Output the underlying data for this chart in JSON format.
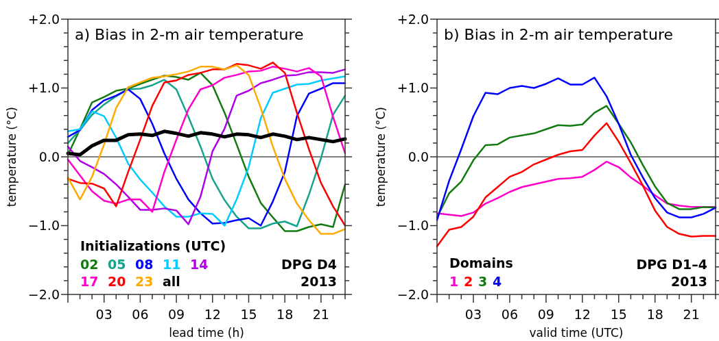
{
  "chart_data": [
    {
      "type": "line",
      "title": "a)  Bias in 2-m air temperature",
      "xlabel": "lead time (h)",
      "ylabel": "temperature (°C)",
      "legend_title": "Initializations (UTC)",
      "legend": "bottom left",
      "grid": false,
      "marker": "none",
      "line_style": "solid",
      "annotations": [
        "DPG D4",
        "2013"
      ],
      "x": [
        0,
        1,
        2,
        3,
        4,
        5,
        6,
        7,
        8,
        9,
        10,
        11,
        12,
        13,
        14,
        15,
        16,
        17,
        18,
        19,
        20,
        21,
        22,
        23
      ],
      "xlim": [
        0,
        23
      ],
      "xticks": [
        {
          "value": 0,
          "label": null
        },
        {
          "value": 1,
          "label": null
        },
        {
          "value": 2,
          "label": null
        },
        {
          "value": 3,
          "label": "03"
        },
        {
          "value": 4,
          "label": null
        },
        {
          "value": 5,
          "label": null
        },
        {
          "value": 6,
          "label": "06"
        },
        {
          "value": 7,
          "label": null
        },
        {
          "value": 8,
          "label": null
        },
        {
          "value": 9,
          "label": "09"
        },
        {
          "value": 10,
          "label": null
        },
        {
          "value": 11,
          "label": null
        },
        {
          "value": 12,
          "label": "12"
        },
        {
          "value": 13,
          "label": null
        },
        {
          "value": 14,
          "label": null
        },
        {
          "value": 15,
          "label": "15"
        },
        {
          "value": 16,
          "label": null
        },
        {
          "value": 17,
          "label": null
        },
        {
          "value": 18,
          "label": "18"
        },
        {
          "value": 19,
          "label": null
        },
        {
          "value": 20,
          "label": null
        },
        {
          "value": 21,
          "label": "21"
        },
        {
          "value": 22,
          "label": null
        },
        {
          "value": 23,
          "label": null
        }
      ],
      "ylim": [
        -2,
        2
      ],
      "yticks": [
        {
          "value": -2,
          "label": "−2.0"
        },
        {
          "value": -1.8,
          "label": null
        },
        {
          "value": -1.6,
          "label": null
        },
        {
          "value": -1.4,
          "label": null
        },
        {
          "value": -1.2,
          "label": null
        },
        {
          "value": -1,
          "label": "−1.0"
        },
        {
          "value": -0.8,
          "label": null
        },
        {
          "value": -0.6,
          "label": null
        },
        {
          "value": -0.4,
          "label": null
        },
        {
          "value": -0.2,
          "label": null
        },
        {
          "value": 0,
          "label": "0.0"
        },
        {
          "value": 0.2,
          "label": null
        },
        {
          "value": 0.4,
          "label": null
        },
        {
          "value": 0.6,
          "label": null
        },
        {
          "value": 0.8,
          "label": null
        },
        {
          "value": 1,
          "label": "+1.0"
        },
        {
          "value": 1.2,
          "label": null
        },
        {
          "value": 1.4,
          "label": null
        },
        {
          "value": 1.6,
          "label": null
        },
        {
          "value": 1.8,
          "label": null
        },
        {
          "value": 2,
          "label": "+2.0"
        }
      ],
      "ref_lines": [
        {
          "axis": "y",
          "value": 0,
          "color": "#000000"
        }
      ],
      "series": [
        {
          "name": "02",
          "color": "#117a11",
          "values": [
            0.03,
            0.4,
            0.79,
            0.87,
            0.96,
            0.99,
            1.06,
            1.12,
            1.18,
            1.16,
            1.12,
            1.22,
            1.04,
            0.64,
            0.18,
            -0.29,
            -0.67,
            -0.88,
            -1.08,
            -1.08,
            -1.02,
            -0.98,
            -1.02,
            -0.4
          ]
        },
        {
          "name": "05",
          "color": "#16a38c",
          "values": [
            0.2,
            0.39,
            0.61,
            0.76,
            0.88,
            0.98,
            0.99,
            1.04,
            1.12,
            0.98,
            0.58,
            0.15,
            -0.32,
            -0.63,
            -0.87,
            -1.04,
            -1.04,
            -0.97,
            -0.94,
            -1.01,
            -0.55,
            -0.02,
            0.61,
            0.89
          ]
        },
        {
          "name": "08",
          "color": "#0000ff",
          "values": [
            0.29,
            0.39,
            0.68,
            0.82,
            0.89,
            0.98,
            0.84,
            0.48,
            0.05,
            -0.32,
            -0.62,
            -0.82,
            -0.97,
            -0.96,
            -0.92,
            -0.89,
            -1.0,
            -0.65,
            -0.22,
            0.59,
            0.92,
            0.99,
            1.07,
            1.07
          ]
        },
        {
          "name": "11",
          "color": "#00ccff",
          "values": [
            0.37,
            0.4,
            0.66,
            0.59,
            0.28,
            -0.1,
            -0.33,
            -0.52,
            -0.72,
            -0.87,
            -0.87,
            -0.82,
            -0.83,
            -1.0,
            -0.62,
            -0.15,
            0.56,
            0.93,
            0.99,
            1.05,
            1.06,
            1.11,
            1.14,
            1.17
          ]
        },
        {
          "name": "14",
          "color": "#b000e8",
          "values": [
            0.15,
            -0.06,
            -0.15,
            -0.25,
            -0.4,
            -0.58,
            -0.77,
            -0.77,
            -0.75,
            -0.78,
            -0.98,
            -0.58,
            0.08,
            0.41,
            0.89,
            0.96,
            1.07,
            1.12,
            1.18,
            1.19,
            1.23,
            1.23,
            1.22,
            1.27
          ]
        },
        {
          "name": "17",
          "color": "#ff00cc",
          "values": [
            -0.04,
            -0.27,
            -0.5,
            -0.64,
            -0.68,
            -0.62,
            -0.62,
            -0.8,
            -0.22,
            0.25,
            0.69,
            0.98,
            1.04,
            1.15,
            1.19,
            1.24,
            1.25,
            1.31,
            1.28,
            1.24,
            1.29,
            1.17,
            0.58,
            0.05
          ]
        },
        {
          "name": "20",
          "color": "#ff0000",
          "values": [
            -0.32,
            -0.38,
            -0.39,
            -0.46,
            -0.72,
            -0.22,
            0.25,
            0.74,
            1.08,
            1.11,
            1.19,
            1.22,
            1.27,
            1.27,
            1.35,
            1.33,
            1.28,
            1.37,
            1.22,
            0.64,
            0.11,
            -0.38,
            -0.72,
            -1.0
          ]
        },
        {
          "name": "23",
          "color": "#ffaa00",
          "values": [
            -0.3,
            -0.62,
            -0.29,
            0.18,
            0.71,
            1.01,
            1.08,
            1.15,
            1.17,
            1.2,
            1.24,
            1.31,
            1.31,
            1.27,
            1.33,
            1.19,
            0.71,
            0.15,
            -0.32,
            -0.68,
            -0.92,
            -1.12,
            -1.12,
            -1.05
          ]
        },
        {
          "name": "all",
          "color": "#000000",
          "values": [
            0.05,
            0.03,
            0.16,
            0.24,
            0.24,
            0.32,
            0.33,
            0.31,
            0.37,
            0.34,
            0.3,
            0.35,
            0.33,
            0.29,
            0.33,
            0.32,
            0.28,
            0.33,
            0.3,
            0.25,
            0.28,
            0.25,
            0.22,
            0.26
          ]
        }
      ]
    },
    {
      "type": "line",
      "title": "b)  Bias in 2-m air temperature",
      "xlabel": "valid time (UTC)",
      "ylabel": "temperature (°C)",
      "legend_title": "Domains",
      "legend": "bottom left",
      "grid": false,
      "marker": "none",
      "line_style": "solid",
      "annotations": [
        "DPG D1–4",
        "2013"
      ],
      "x": [
        0,
        1,
        2,
        3,
        4,
        5,
        6,
        7,
        8,
        9,
        10,
        11,
        12,
        13,
        14,
        15,
        16,
        17,
        18,
        19,
        20,
        21,
        22,
        23
      ],
      "xlim": [
        0,
        23
      ],
      "xticks": [
        {
          "value": 0,
          "label": null
        },
        {
          "value": 1,
          "label": null
        },
        {
          "value": 2,
          "label": null
        },
        {
          "value": 3,
          "label": "03"
        },
        {
          "value": 4,
          "label": null
        },
        {
          "value": 5,
          "label": null
        },
        {
          "value": 6,
          "label": "06"
        },
        {
          "value": 7,
          "label": null
        },
        {
          "value": 8,
          "label": null
        },
        {
          "value": 9,
          "label": "09"
        },
        {
          "value": 10,
          "label": null
        },
        {
          "value": 11,
          "label": null
        },
        {
          "value": 12,
          "label": "12"
        },
        {
          "value": 13,
          "label": null
        },
        {
          "value": 14,
          "label": null
        },
        {
          "value": 15,
          "label": "15"
        },
        {
          "value": 16,
          "label": null
        },
        {
          "value": 17,
          "label": null
        },
        {
          "value": 18,
          "label": "18"
        },
        {
          "value": 19,
          "label": null
        },
        {
          "value": 20,
          "label": null
        },
        {
          "value": 21,
          "label": "21"
        },
        {
          "value": 22,
          "label": null
        },
        {
          "value": 23,
          "label": null
        }
      ],
      "ylim": [
        -2,
        2
      ],
      "yticks": [
        {
          "value": -2,
          "label": "−2.0"
        },
        {
          "value": -1.8,
          "label": null
        },
        {
          "value": -1.6,
          "label": null
        },
        {
          "value": -1.4,
          "label": null
        },
        {
          "value": -1.2,
          "label": null
        },
        {
          "value": -1,
          "label": "−1.0"
        },
        {
          "value": -0.8,
          "label": null
        },
        {
          "value": -0.6,
          "label": null
        },
        {
          "value": -0.4,
          "label": null
        },
        {
          "value": -0.2,
          "label": null
        },
        {
          "value": 0,
          "label": "0.0"
        },
        {
          "value": 0.2,
          "label": null
        },
        {
          "value": 0.4,
          "label": null
        },
        {
          "value": 0.6,
          "label": null
        },
        {
          "value": 0.8,
          "label": null
        },
        {
          "value": 1,
          "label": "+1.0"
        },
        {
          "value": 1.2,
          "label": null
        },
        {
          "value": 1.4,
          "label": null
        },
        {
          "value": 1.6,
          "label": null
        },
        {
          "value": 1.8,
          "label": null
        },
        {
          "value": 2,
          "label": "+2.0"
        }
      ],
      "ref_lines": [
        {
          "axis": "y",
          "value": 0,
          "color": "#000000"
        }
      ],
      "series": [
        {
          "name": "1",
          "color": "#ff00cc",
          "values": [
            -0.82,
            -0.84,
            -0.86,
            -0.81,
            -0.68,
            -0.6,
            -0.51,
            -0.44,
            -0.4,
            -0.36,
            -0.32,
            -0.31,
            -0.29,
            -0.19,
            -0.07,
            -0.15,
            -0.3,
            -0.42,
            -0.56,
            -0.68,
            -0.71,
            -0.73,
            -0.73,
            -0.73
          ]
        },
        {
          "name": "2",
          "color": "#ff0000",
          "values": [
            -1.3,
            -1.06,
            -1.02,
            -0.87,
            -0.59,
            -0.44,
            -0.29,
            -0.22,
            -0.11,
            -0.04,
            0.03,
            0.08,
            0.1,
            0.31,
            0.49,
            0.22,
            -0.09,
            -0.42,
            -0.78,
            -1.02,
            -1.12,
            -1.16,
            -1.15,
            -1.15
          ]
        },
        {
          "name": "3",
          "color": "#117a11",
          "values": [
            -0.88,
            -0.53,
            -0.36,
            -0.05,
            0.17,
            0.18,
            0.28,
            0.31,
            0.34,
            0.4,
            0.46,
            0.45,
            0.47,
            0.64,
            0.74,
            0.48,
            0.21,
            -0.12,
            -0.43,
            -0.67,
            -0.76,
            -0.76,
            -0.73,
            -0.74
          ]
        },
        {
          "name": "4",
          "color": "#0000ff",
          "values": [
            -0.92,
            -0.35,
            0.11,
            0.59,
            0.93,
            0.91,
            1.0,
            1.03,
            1.0,
            1.06,
            1.14,
            1.05,
            1.05,
            1.15,
            0.88,
            0.48,
            0.03,
            -0.3,
            -0.6,
            -0.81,
            -0.88,
            -0.88,
            -0.83,
            -0.74
          ]
        }
      ]
    }
  ]
}
